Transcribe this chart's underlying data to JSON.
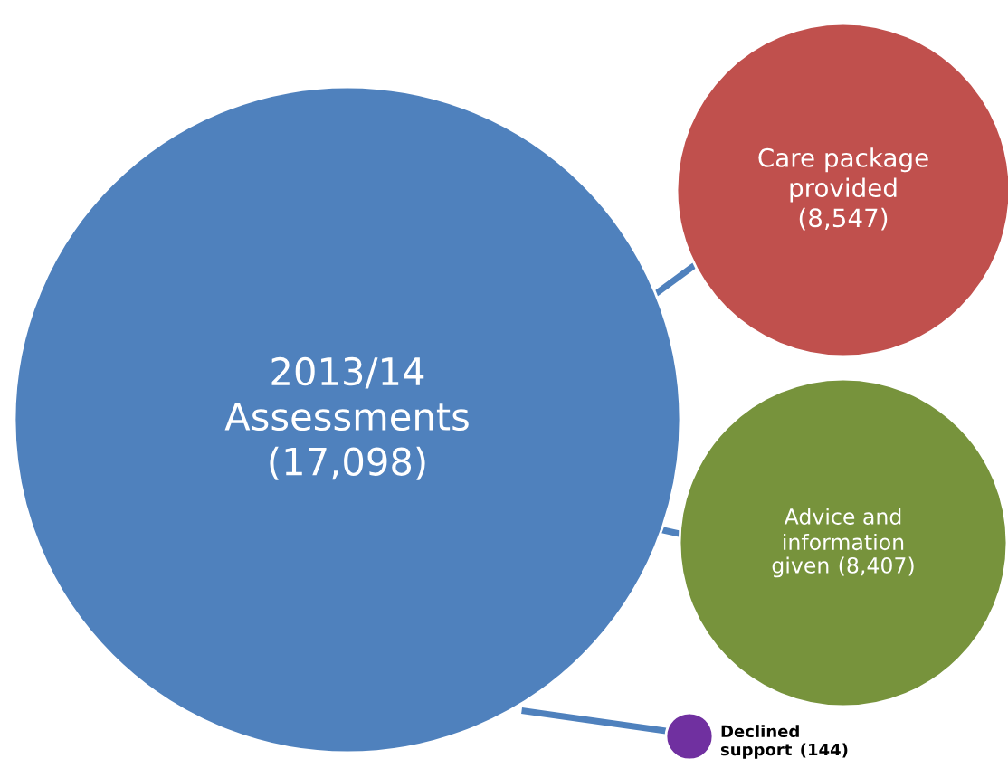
{
  "chart_data": {
    "type": "other",
    "categories": [
      "2013/14\nAssessments",
      "Care package\nprovided",
      "Advice and\ninformation\ngiven",
      "Declined\nsupport"
    ],
    "values": [
      17098,
      8547,
      8407,
      144
    ],
    "value_labels": [
      "(17,098)",
      "(8,547)",
      "(8,407)",
      "(144)"
    ],
    "colors": [
      "#4f81bd",
      "#c0504d",
      "#77933c",
      "#7030a0"
    ]
  }
}
